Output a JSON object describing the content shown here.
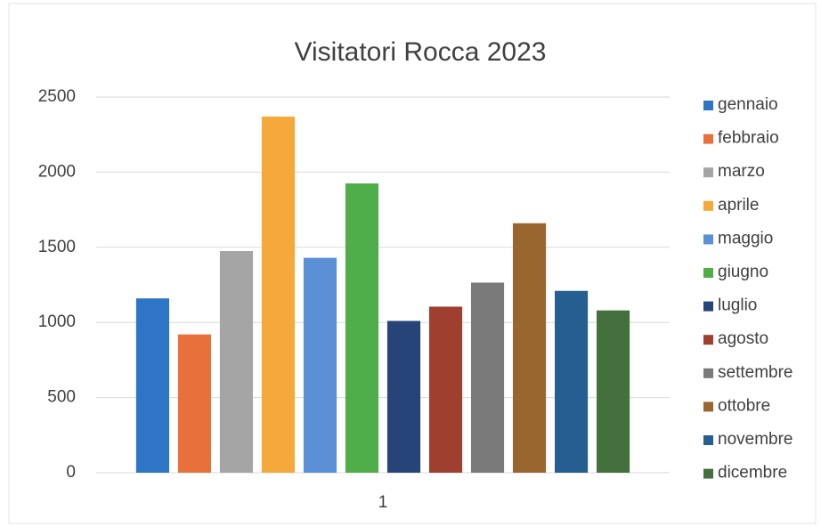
{
  "chart_data": {
    "type": "bar",
    "title": "Visitatori Rocca 2023",
    "categories": [
      "1"
    ],
    "series": [
      {
        "name": "gennaio",
        "color": "#2e75c6",
        "values": [
          1160
        ]
      },
      {
        "name": "febbraio",
        "color": "#e8703a",
        "values": [
          920
        ]
      },
      {
        "name": "marzo",
        "color": "#a5a5a5",
        "values": [
          1475
        ]
      },
      {
        "name": "aprile",
        "color": "#f4a93a",
        "values": [
          2370
        ]
      },
      {
        "name": "maggio",
        "color": "#5b8fd6",
        "values": [
          1430
        ]
      },
      {
        "name": "giugno",
        "color": "#4fad4a",
        "values": [
          1925
        ]
      },
      {
        "name": "luglio",
        "color": "#264478",
        "values": [
          1010
        ]
      },
      {
        "name": "agosto",
        "color": "#9e3f30",
        "values": [
          1105
        ]
      },
      {
        "name": "settembre",
        "color": "#7a7a7a",
        "values": [
          1265
        ]
      },
      {
        "name": "ottobre",
        "color": "#9a6630",
        "values": [
          1660
        ]
      },
      {
        "name": "novembre",
        "color": "#255e91",
        "values": [
          1210
        ]
      },
      {
        "name": "dicembre",
        "color": "#43703d",
        "values": [
          1080
        ]
      }
    ],
    "ylim": [
      0,
      2500
    ],
    "yticks": [
      0,
      500,
      1000,
      1500,
      2000,
      2500
    ],
    "grid": true,
    "legend": "right"
  }
}
